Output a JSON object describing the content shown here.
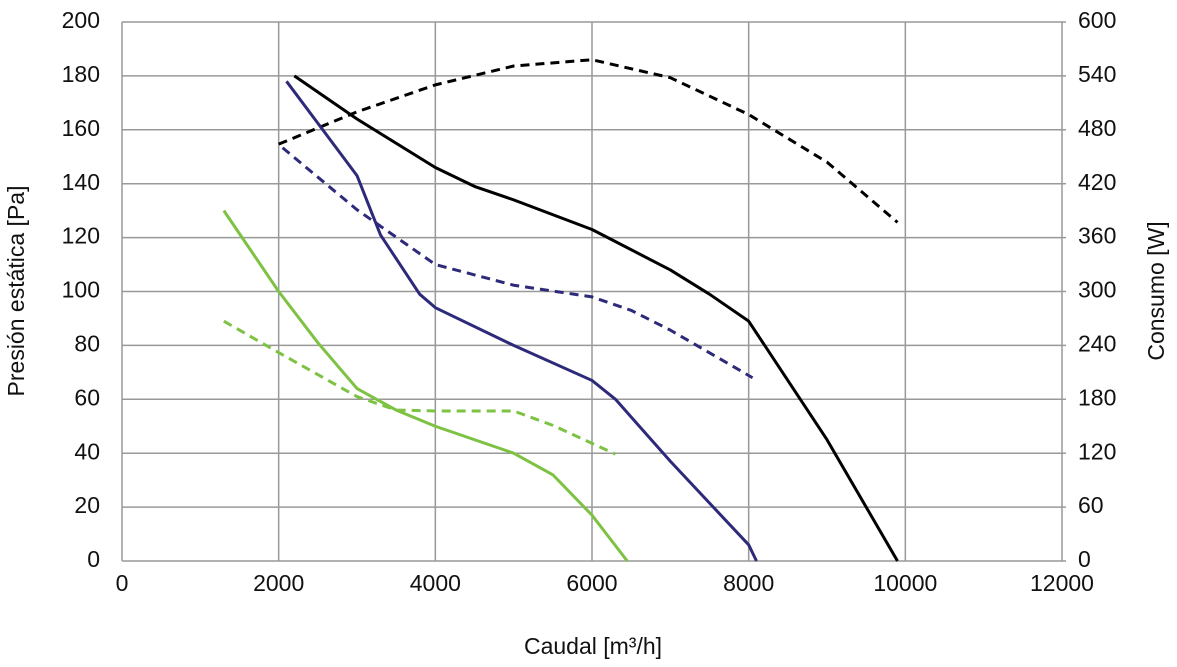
{
  "chart_data": {
    "type": "line",
    "x_label": "Caudal [m³/h]",
    "y_label": "Presión estática [Pa]",
    "y2_label": "Consumo [W]",
    "xlim": [
      0,
      12000
    ],
    "xticks": [
      0,
      2000,
      4000,
      6000,
      8000,
      10000,
      12000
    ],
    "ylim": [
      0,
      200
    ],
    "yticks": [
      0,
      20,
      40,
      60,
      80,
      100,
      120,
      140,
      160,
      180,
      200
    ],
    "y2lim": [
      0,
      600
    ],
    "y2ticks": [
      0,
      60,
      120,
      180,
      240,
      300,
      360,
      420,
      480,
      540,
      600
    ],
    "grid": true,
    "series": [
      {
        "color": "#000000",
        "dashed": false,
        "axis": "y",
        "x": [
          2200,
          3000,
          4000,
          4500,
          5000,
          6000,
          7000,
          7500,
          8000,
          9000,
          9900
        ],
        "values": [
          180,
          164,
          146,
          139,
          134,
          123,
          108,
          99,
          89,
          45,
          0
        ]
      },
      {
        "color": "#000000",
        "dashed": true,
        "axis": "y2",
        "x": [
          2000,
          3000,
          4000,
          5000,
          6000,
          7000,
          8000,
          9000,
          9900
        ],
        "values": [
          464,
          500,
          530,
          551,
          558,
          538,
          497,
          444,
          377
        ]
      },
      {
        "color": "#2e2a7a",
        "dashed": false,
        "axis": "y",
        "x": [
          2100,
          3000,
          3300,
          3800,
          4000,
          5000,
          6000,
          6300,
          7000,
          8000,
          8100
        ],
        "values": [
          178,
          143,
          121,
          99,
          94,
          80,
          67,
          60,
          37,
          6,
          0
        ]
      },
      {
        "color": "#2e2a7a",
        "dashed": true,
        "axis": "y2",
        "x": [
          2050,
          3000,
          4000,
          5000,
          6000,
          6500,
          7000,
          8050
        ],
        "values": [
          460,
          391,
          330,
          307,
          294,
          279,
          257,
          204
        ]
      },
      {
        "color": "#7dc242",
        "dashed": false,
        "axis": "y",
        "x": [
          1300,
          2000,
          2500,
          3000,
          3500,
          4000,
          5000,
          5500,
          6000,
          6450
        ],
        "values": [
          130,
          100,
          81,
          64,
          56,
          50,
          40,
          32,
          17,
          0
        ]
      },
      {
        "color": "#7dc242",
        "dashed": true,
        "axis": "y2",
        "x": [
          1300,
          2000,
          3000,
          3500,
          4000,
          5000,
          5500,
          6300
        ],
        "values": [
          267,
          232,
          183,
          168,
          167,
          167,
          151,
          119
        ]
      }
    ]
  }
}
